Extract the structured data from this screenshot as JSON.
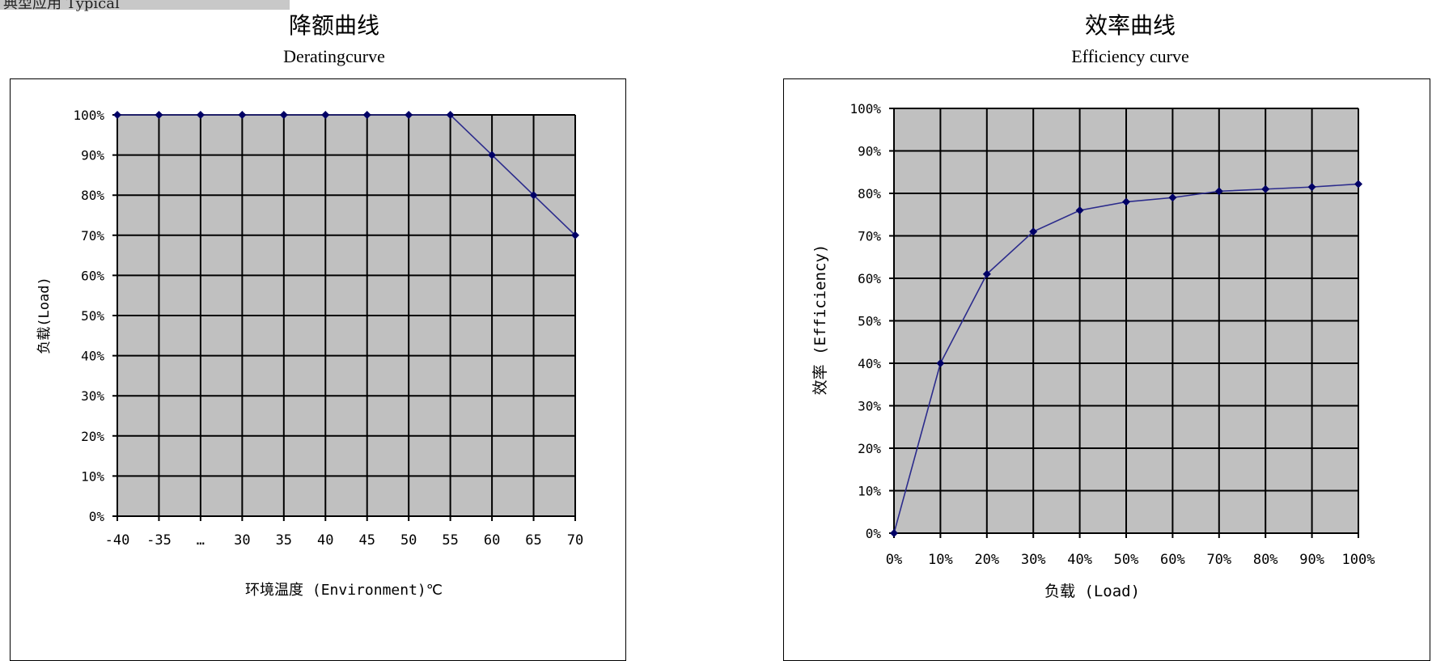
{
  "header": {
    "corner_text": "典型应用 Typical"
  },
  "charts": {
    "derating": {
      "title_cn": "降额曲线",
      "title_en": "Deratingcurve",
      "ylabel": "负载(Load)",
      "xlabel": "环境温度 (Environment)℃"
    },
    "efficiency": {
      "title_cn": "效率曲线",
      "title_en": "Efficiency curve",
      "ylabel": "效率 (Efficiency)",
      "xlabel": "负载 (Load)"
    }
  },
  "chart_data": [
    {
      "type": "line",
      "title": "降额曲线",
      "subtitle": "Deratingcurve",
      "xlabel": "环境温度 (Environment)℃",
      "ylabel": "负载(Load)",
      "categories": [
        "-40",
        "-35",
        "…",
        "30",
        "35",
        "40",
        "45",
        "50",
        "55",
        "60",
        "65",
        "70"
      ],
      "values": [
        100,
        100,
        100,
        100,
        100,
        100,
        100,
        100,
        100,
        90,
        80,
        70
      ],
      "ylim": [
        0,
        100
      ],
      "yticks": [
        "0%",
        "10%",
        "20%",
        "30%",
        "40%",
        "50%",
        "60%",
        "70%",
        "80%",
        "90%",
        "100%"
      ],
      "grid": true,
      "plot_background": "#c0c0c0",
      "line_color": "#2b2b8c",
      "marker_color": "#000066"
    },
    {
      "type": "line",
      "title": "效率曲线",
      "subtitle": "Efficiency curve",
      "xlabel": "负载 (Load)",
      "ylabel": "效率 (Efficiency)",
      "categories": [
        "0%",
        "10%",
        "20%",
        "30%",
        "40%",
        "50%",
        "60%",
        "70%",
        "80%",
        "90%",
        "100%"
      ],
      "values": [
        0,
        40,
        61,
        71,
        76,
        78,
        79,
        80.5,
        81,
        81.5,
        82.2
      ],
      "ylim": [
        0,
        100
      ],
      "yticks": [
        "0%",
        "10%",
        "20%",
        "30%",
        "40%",
        "50%",
        "60%",
        "70%",
        "80%",
        "90%",
        "100%"
      ],
      "grid": true,
      "plot_background": "#c0c0c0",
      "line_color": "#2b2b8c",
      "marker_color": "#000066"
    }
  ]
}
